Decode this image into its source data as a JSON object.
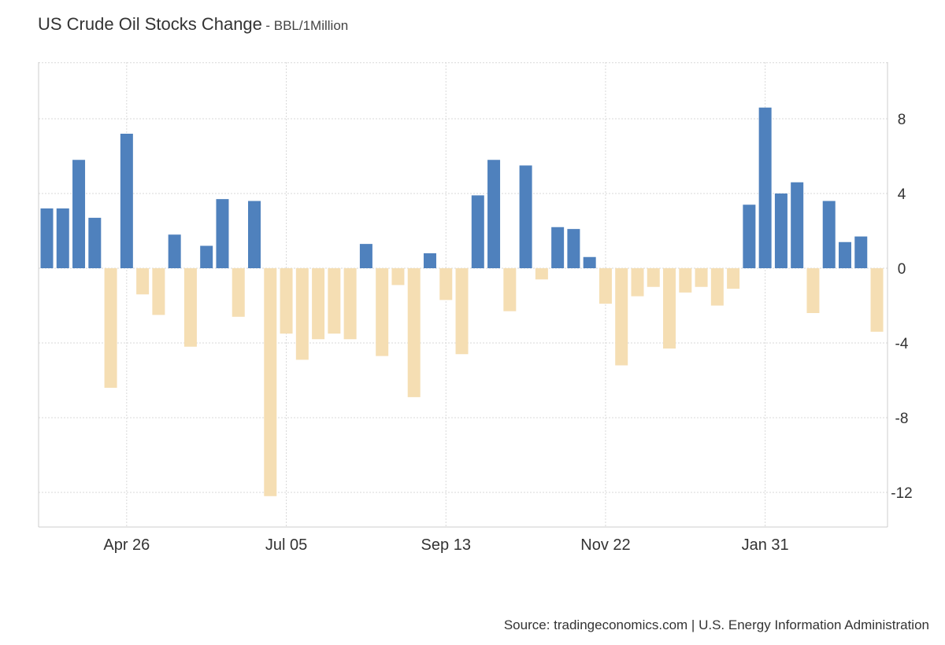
{
  "chart_data": {
    "type": "bar",
    "title": "US Crude Oil Stocks Change",
    "subtitle": "- BBL/1Million",
    "xlabel": "",
    "ylabel": "",
    "x_tick_labels": [
      "Apr 26",
      "Jul 05",
      "Sep 13",
      "Nov 22",
      "Jan 31"
    ],
    "y_ticks": [
      8,
      4,
      0,
      -4,
      -8,
      -12
    ],
    "ylim": [
      -14,
      11
    ],
    "grid": true,
    "positive_color": "#4f81bd",
    "negative_color": "#f5deb3",
    "values": [
      3.2,
      3.2,
      5.8,
      2.7,
      -6.4,
      7.2,
      -1.4,
      -2.5,
      1.8,
      -4.2,
      1.2,
      3.7,
      -2.6,
      3.6,
      -12.2,
      -3.5,
      -4.9,
      -3.8,
      -3.5,
      -3.8,
      1.3,
      -4.7,
      -0.9,
      -6.9,
      0.8,
      -1.7,
      -4.6,
      3.9,
      5.8,
      -2.3,
      5.5,
      -0.6,
      2.2,
      2.1,
      0.6,
      -1.9,
      -5.2,
      -1.5,
      -1.0,
      -4.3,
      -1.3,
      -1.0,
      -2.0,
      -1.1,
      3.4,
      8.6,
      4.0,
      4.6,
      -2.4,
      3.6,
      1.4,
      1.7,
      -3.4
    ]
  },
  "source": "Source: tradingeconomics.com | U.S. Energy Information Administration"
}
